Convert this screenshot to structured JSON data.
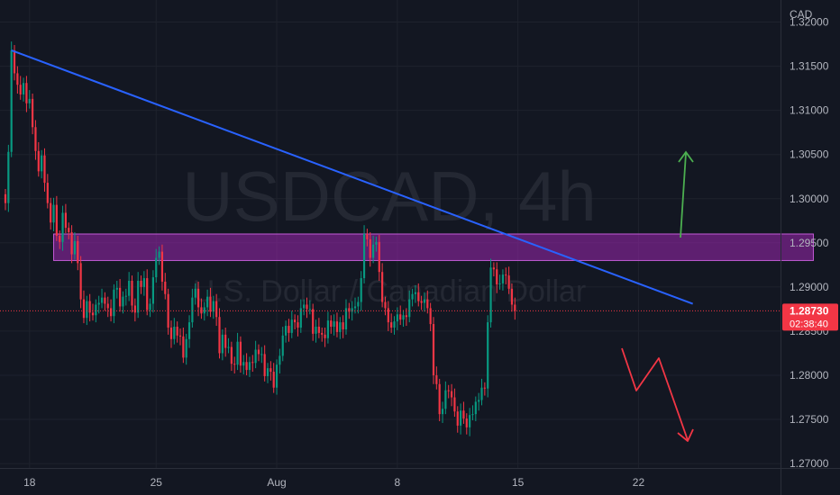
{
  "chart_data": {
    "type": "candlestick",
    "watermark_symbol": "USDCAD, 4h",
    "watermark_name": "U.S. Dollar / Canadian Dollar",
    "currency_label": "CAD",
    "y_ticks": [
      "1.32000",
      "1.31500",
      "1.31000",
      "1.30500",
      "1.30000",
      "1.29500",
      "1.29000",
      "1.28500",
      "1.28000",
      "1.27500",
      "1.27000"
    ],
    "y_tick_values": [
      1.32,
      1.315,
      1.31,
      1.305,
      1.3,
      1.295,
      1.29,
      1.285,
      1.28,
      1.275,
      1.27
    ],
    "ylim": [
      1.2695,
      1.3225
    ],
    "x_ticks": [
      {
        "label": "18",
        "bar": 8
      },
      {
        "label": "25",
        "bar": 50
      },
      {
        "label": "Aug",
        "bar": 90
      },
      {
        "label": "8",
        "bar": 130
      },
      {
        "label": "15",
        "bar": 170
      },
      {
        "label": "22",
        "bar": 210
      }
    ],
    "current_price": "1.28730",
    "current_value": 1.2873,
    "countdown": "02:38:40",
    "closes": [
      1.2995,
      1.3053,
      1.3168,
      1.3142,
      1.3129,
      1.3118,
      1.3131,
      1.3108,
      1.3113,
      1.3081,
      1.3054,
      1.3031,
      1.3049,
      1.3018,
      1.2995,
      1.2973,
      1.2993,
      1.2958,
      1.2951,
      1.2984,
      1.2967,
      1.2962,
      1.2937,
      1.2952,
      1.2927,
      1.2886,
      1.2865,
      1.2884,
      1.2871,
      1.2868,
      1.288,
      1.2882,
      1.2888,
      1.2881,
      1.2876,
      1.2867,
      1.2897,
      1.2899,
      1.2878,
      1.2889,
      1.289,
      1.2907,
      1.2879,
      1.2871,
      1.2907,
      1.29,
      1.291,
      1.2874,
      1.2881,
      1.2911,
      1.2933,
      1.294,
      1.2906,
      1.2892,
      1.2854,
      1.2841,
      1.2855,
      1.2845,
      1.2844,
      1.282,
      1.2841,
      1.286,
      1.2888,
      1.2898,
      1.2877,
      1.287,
      1.2877,
      1.2889,
      1.2872,
      1.2884,
      1.2866,
      1.2825,
      1.2846,
      1.2831,
      1.2832,
      1.2813,
      1.2812,
      1.2838,
      1.2811,
      1.2815,
      1.2806,
      1.2815,
      1.2814,
      1.2829,
      1.2824,
      1.2824,
      1.2799,
      1.2808,
      1.2804,
      1.2786,
      1.2812,
      1.2822,
      1.2845,
      1.2856,
      1.2848,
      1.2863,
      1.286,
      1.2854,
      1.2876,
      1.288,
      1.2875,
      1.2875,
      1.2847,
      1.2855,
      1.2848,
      1.2846,
      1.2842,
      1.2862,
      1.2855,
      1.2861,
      1.2849,
      1.286,
      1.2852,
      1.2876,
      1.2872,
      1.2876,
      1.2878,
      1.2883,
      1.291,
      1.296,
      1.2954,
      1.2933,
      1.2948,
      1.2951,
      1.2917,
      1.2883,
      1.2876,
      1.286,
      1.2854,
      1.2861,
      1.2869,
      1.2863,
      1.2868,
      1.2866,
      1.2886,
      1.2892,
      1.2894,
      1.2884,
      1.2882,
      1.2886,
      1.2876,
      1.2858,
      1.28,
      1.279,
      1.2756,
      1.2762,
      1.2783,
      1.2782,
      1.2775,
      1.2759,
      1.2743,
      1.276,
      1.2751,
      1.2741,
      1.2755,
      1.2756,
      1.277,
      1.2772,
      1.2786,
      1.2785,
      1.286,
      1.2922,
      1.292,
      1.2903,
      1.2904,
      1.2914,
      1.2913,
      1.2898,
      1.288,
      1.2873
    ],
    "trendline": {
      "from": {
        "bar": 2,
        "price": 1.3168
      },
      "to": {
        "bar": 228,
        "price": 1.2881
      }
    },
    "resistance_zone": {
      "from_bar": 16,
      "to_bar": 268,
      "top": 1.296,
      "bottom": 1.293
    },
    "arrow_up_color": "#4caf50",
    "arrow_down_color": "#f23645",
    "colors": {
      "up": "#089981",
      "down": "#f23645",
      "trend": "#2962ff",
      "zone": "#9c27b0"
    }
  }
}
